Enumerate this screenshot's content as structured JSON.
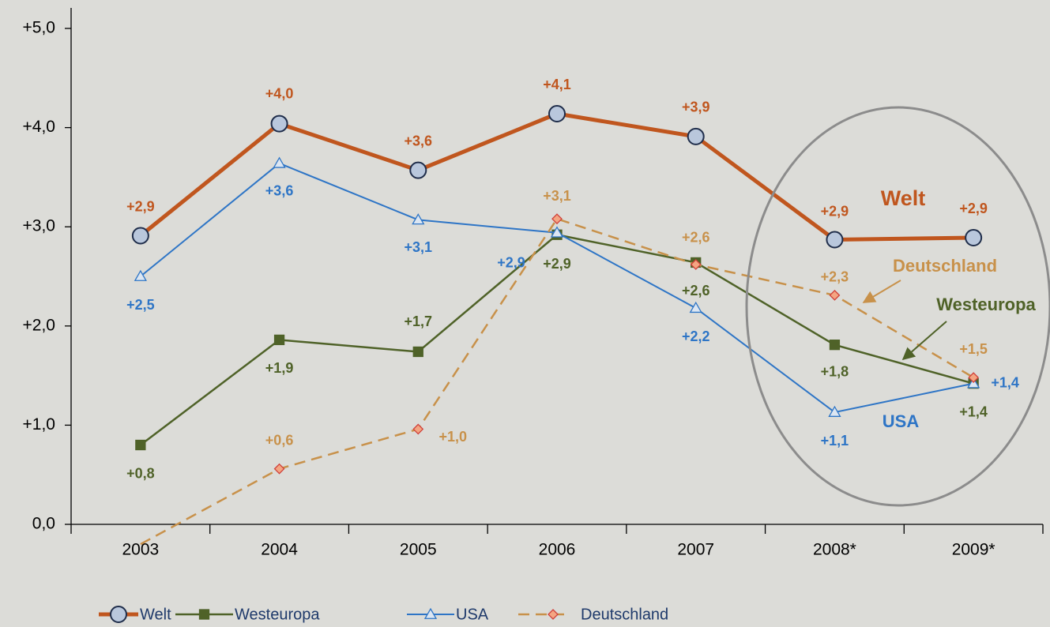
{
  "chart_data": {
    "type": "line",
    "categories": [
      "2003",
      "2004",
      "2005",
      "2006",
      "2007",
      "2008*",
      "2009*"
    ],
    "series": [
      {
        "name": "Welt",
        "color": "#c0561e",
        "marker": "circle",
        "values": [
          2.91,
          4.04,
          3.57,
          4.14,
          3.91,
          2.87,
          2.89
        ],
        "value_labels": [
          "+2,9",
          "+4,0",
          "+3,6",
          "+4,1",
          "+3,9",
          "+2,9",
          "+2,9"
        ]
      },
      {
        "name": "Westeuropa",
        "color": "#4f6228",
        "marker": "square",
        "values": [
          0.8,
          1.86,
          1.74,
          2.92,
          2.64,
          1.81,
          1.42
        ],
        "value_labels": [
          "+0,8",
          "+1,9",
          "+1,7",
          "+2,9",
          "+2,6",
          "+1,8",
          "+1,4"
        ]
      },
      {
        "name": "USA",
        "color": "#2e75c6",
        "marker": "triangle",
        "values": [
          2.5,
          3.64,
          3.07,
          2.94,
          2.18,
          1.13,
          1.42
        ],
        "value_labels": [
          "+2,5",
          "+3,6",
          "+3,1",
          "+2,9",
          "+2,2",
          "+1,1",
          "+1,4"
        ]
      },
      {
        "name": "Deutschland",
        "color": "#c8914a",
        "marker": "diamond",
        "dashed": true,
        "values": [
          -0.2,
          0.56,
          0.96,
          3.08,
          2.62,
          2.31,
          1.48
        ],
        "value_labels": [
          null,
          "+0,6",
          "+1,0",
          "+3,1",
          "+2,6",
          "+2,3",
          "+1,5"
        ]
      }
    ],
    "ylim": [
      0,
      5
    ],
    "yticks": [
      {
        "value": 0,
        "label": "0,0"
      },
      {
        "value": 1,
        "label": "+1,0"
      },
      {
        "value": 2,
        "label": "+2,0"
      },
      {
        "value": 3,
        "label": "+3,0"
      },
      {
        "value": 4,
        "label": "+4,0"
      },
      {
        "value": 5,
        "label": "+5,0"
      }
    ],
    "annotations": [
      "Welt",
      "Deutschland",
      "Westeuropa",
      "USA"
    ],
    "legend": "bottom"
  }
}
